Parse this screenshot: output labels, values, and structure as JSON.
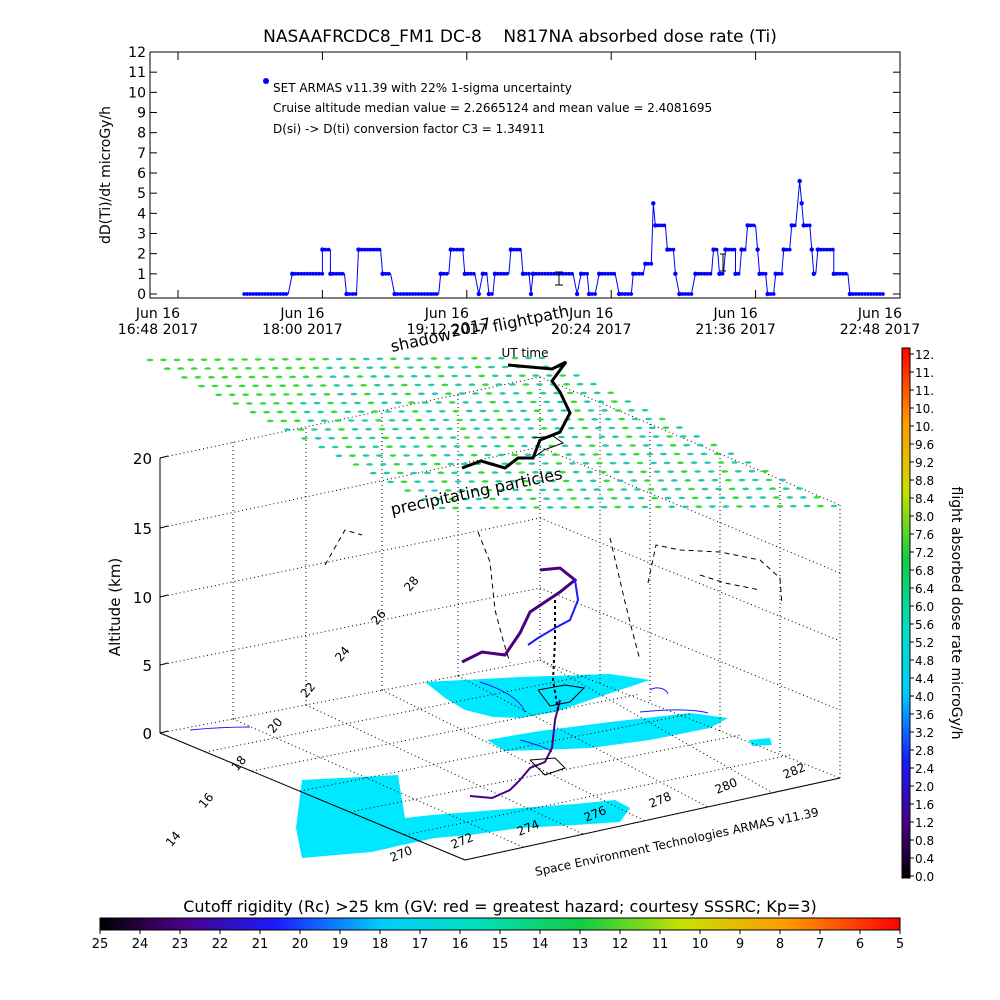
{
  "chart_data": [
    {
      "type": "line",
      "title": "NASAAFRCDC8_FM1 DC-8    N817NA absorbed dose rate (Ti)",
      "ylabel": "dD(Ti)/dt microGy/h",
      "xlabel": "UT time",
      "ylim": [
        0,
        12
      ],
      "yticks": [
        "0",
        "1",
        "2",
        "3",
        "4",
        "5",
        "6",
        "7",
        "8",
        "9",
        "10",
        "11",
        "12"
      ],
      "xlim_minutes": [
        0,
        360
      ],
      "xticks": [
        {
          "minute": 0,
          "line1": "Jun 16",
          "line2": "16:48 2017"
        },
        {
          "minute": 72,
          "line1": "Jun 16",
          "line2": "18:00 2017"
        },
        {
          "minute": 144,
          "line1": "Jun 16",
          "line2": "19:12 2017"
        },
        {
          "minute": 216,
          "line1": "Jun 16",
          "line2": "20:24 2017"
        },
        {
          "minute": 288,
          "line1": "Jun 16",
          "line2": "21:36 2017"
        },
        {
          "minute": 360,
          "line1": "Jun 16",
          "line2": "22:48 2017"
        }
      ],
      "annotations": [
        "SET ARMAS v11.39 with 22% 1-sigma uncertainty",
        "Cruise altitude median value = 2.2665124 and mean value = 2.4081695",
        "D(si) -> D(ti) conversion factor C3 = 1.34911"
      ],
      "series_color": "#0000ff",
      "segments": [
        [
          33,
          0
        ],
        [
          55,
          0
        ],
        [
          57,
          1
        ],
        [
          72,
          1
        ],
        [
          72,
          2.2
        ],
        [
          76,
          2.2
        ],
        [
          76,
          1
        ],
        [
          83,
          1
        ],
        [
          84,
          0
        ],
        [
          89,
          0
        ],
        [
          90,
          2.2
        ],
        [
          101,
          2.2
        ],
        [
          102,
          1
        ],
        [
          106,
          1
        ],
        [
          108,
          0
        ],
        [
          130,
          0
        ],
        [
          131,
          1
        ],
        [
          135,
          1
        ],
        [
          136,
          2.2
        ],
        [
          142,
          2.2
        ],
        [
          143,
          1
        ],
        [
          148,
          1
        ],
        [
          150,
          0
        ],
        [
          152,
          1
        ],
        [
          154,
          1
        ],
        [
          155,
          0
        ],
        [
          157,
          0
        ],
        [
          158,
          1
        ],
        [
          165,
          1
        ],
        [
          166,
          2.2
        ],
        [
          171,
          2.2
        ],
        [
          172,
          1
        ],
        [
          175,
          1
        ],
        [
          176,
          0
        ],
        [
          177,
          1
        ],
        [
          197,
          1
        ],
        [
          199,
          0
        ],
        [
          201,
          1
        ],
        [
          204,
          1
        ],
        [
          205,
          0
        ],
        [
          208,
          0
        ],
        [
          210,
          1
        ],
        [
          218,
          1
        ],
        [
          220,
          0
        ],
        [
          226,
          0
        ],
        [
          227,
          1
        ],
        [
          232,
          1
        ],
        [
          233,
          1.5
        ],
        [
          236,
          1.5
        ],
        [
          237,
          4.5
        ],
        [
          238,
          3.4
        ],
        [
          243,
          3.4
        ],
        [
          244,
          2.2
        ],
        [
          247,
          2.2
        ],
        [
          248,
          1
        ],
        [
          250,
          0
        ],
        [
          256,
          0
        ],
        [
          258,
          1
        ],
        [
          266,
          1
        ],
        [
          267,
          2.2
        ],
        [
          269,
          2.2
        ],
        [
          270,
          1
        ],
        [
          272,
          1
        ],
        [
          273,
          2.2
        ],
        [
          278,
          2.2
        ],
        [
          278,
          1
        ],
        [
          280,
          1
        ],
        [
          281,
          2.2
        ],
        [
          283,
          2.2
        ],
        [
          284,
          3.4
        ],
        [
          288,
          3.4
        ],
        [
          289,
          2.2
        ],
        [
          290,
          1
        ],
        [
          293,
          1
        ],
        [
          294,
          0
        ],
        [
          297,
          0
        ],
        [
          298,
          1
        ],
        [
          301,
          1
        ],
        [
          302,
          2.2
        ],
        [
          305,
          2.2
        ],
        [
          306,
          3.4
        ],
        [
          308,
          3.4
        ],
        [
          310,
          5.6
        ],
        [
          311,
          4.5
        ],
        [
          312,
          3.4
        ],
        [
          315,
          3.4
        ],
        [
          316,
          2.2
        ],
        [
          317,
          1
        ],
        [
          318,
          1
        ],
        [
          319,
          2.2
        ],
        [
          327,
          2.2
        ],
        [
          327,
          1
        ],
        [
          334,
          1
        ],
        [
          335,
          0
        ],
        [
          352,
          0
        ]
      ]
    },
    {
      "type": "scatter",
      "title": "",
      "zlabel": "Altitude (km)",
      "zticks": [
        "0",
        "5",
        "10",
        "15",
        "20"
      ],
      "zlim": [
        0,
        20
      ],
      "xticks": [
        "270",
        "272",
        "274",
        "276",
        "278",
        "280",
        "282"
      ],
      "xlim": [
        270,
        282
      ],
      "yticks": [
        "14",
        "16",
        "18",
        "20",
        "22",
        "24",
        "26",
        "28"
      ],
      "ylim": [
        14,
        28
      ],
      "annotations": [
        "shadow",
        "2017",
        "flightpath",
        "precipitating particles"
      ],
      "credit": "Space Environment Technologies ARMAS v11.39",
      "colorbar": {
        "label": "flight absorbed dose rate microGy/h",
        "ticks": [
          "0.0",
          "0.4",
          "0.8",
          "1.2",
          "1.6",
          "2.0",
          "2.4",
          "2.8",
          "3.2",
          "3.6",
          "4.0",
          "4.4",
          "4.8",
          "5.2",
          "5.6",
          "6.0",
          "6.4",
          "6.8",
          "7.2",
          "7.6",
          "8.0",
          "8.4",
          "8.8",
          "9.2",
          "9.6",
          "10.",
          "10.",
          "11.",
          "11.",
          "12."
        ]
      },
      "flight_track_km": [
        [
          12.2,
          0.0
        ],
        [
          12.3,
          0.1
        ],
        [
          12.5,
          0.15
        ],
        [
          12.8,
          0.2
        ],
        [
          12.9,
          0.3
        ],
        [
          12.7,
          0.35
        ],
        [
          12.4,
          0.4
        ],
        [
          12.5,
          0.5
        ],
        [
          12.8,
          0.55
        ],
        [
          12.9,
          0.65
        ],
        [
          12.6,
          0.72
        ],
        [
          12.3,
          0.8
        ],
        [
          12.1,
          0.88
        ],
        [
          12.0,
          1.0
        ]
      ]
    },
    {
      "type": "heatmap",
      "title": "Cutoff rigidity (Rc) >25 km (GV: red = greatest hazard; courtesy SSSRC; Kp=3)",
      "colorbar_ticks": [
        "25",
        "24",
        "23",
        "22",
        "21",
        "20",
        "19",
        "18",
        "17",
        "16",
        "15",
        "14",
        "13",
        "12",
        "11",
        "10",
        "9",
        "8",
        "7",
        "6",
        "5"
      ],
      "color_range": [
        25,
        5
      ]
    }
  ]
}
